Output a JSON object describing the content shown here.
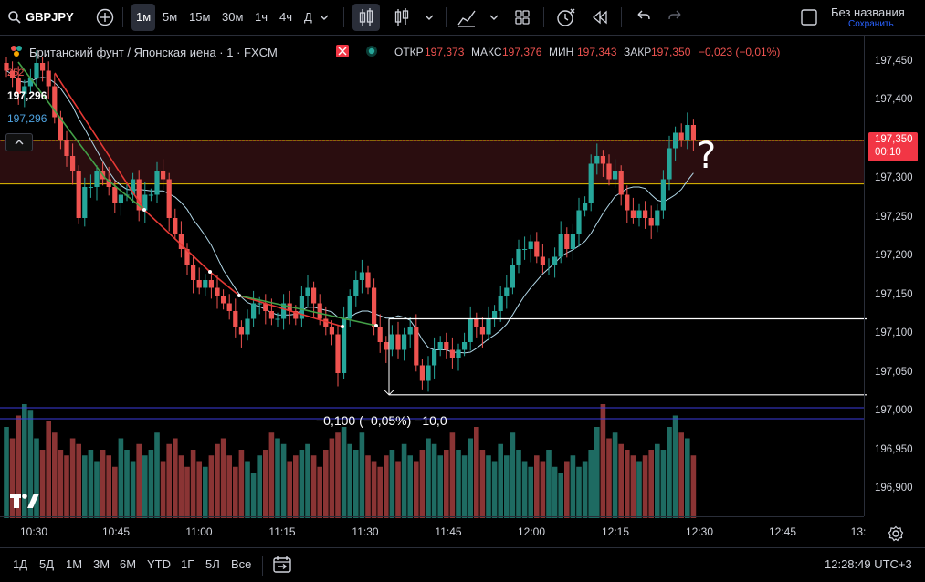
{
  "toolbar": {
    "symbol": "GBPJPY",
    "intervals": [
      "1м",
      "5м",
      "15м",
      "30м",
      "1ч",
      "4ч",
      "Д"
    ],
    "active_interval": "1м",
    "layout_name": "Без названия",
    "save_label": "Сохранить"
  },
  "legend": {
    "instrument": "Британский фунт / Японская иена · 1 · FXCM",
    "open_label": "ОТКР",
    "open": "197,373",
    "high_label": "МАКС",
    "high": "197,376",
    "low_label": "МИН",
    "low": "197,343",
    "close_label": "ЗАКР",
    "close": "197,350",
    "change": "−0,023 (−0,01%)",
    "indicator_value_1": "197,296",
    "indicator_value_2": "197,296",
    "indicator_partial": "252"
  },
  "price_badge": {
    "price": "197,350",
    "countdown": "00:10"
  },
  "measure_label": "−0,100 (−0,05%) −10,0",
  "annotation": "?",
  "bottom": {
    "ranges": [
      "1Д",
      "5Д",
      "1М",
      "3М",
      "6М",
      "YTD",
      "1Г",
      "5Л",
      "Все"
    ],
    "clock": "12:28:49 UTC+3"
  },
  "colors": {
    "up": "#26a69a",
    "down": "#ef5350",
    "vol_up": "#1e6b62",
    "vol_down": "#8a3434",
    "level": "#e5c100",
    "ma": "#b2d8e8",
    "zone": "#2a0d0f"
  },
  "chart_data": {
    "type": "candlestick",
    "symbol": "GBPJPY",
    "interval": "1 min",
    "y_ticks": [
      "197,450",
      "197,400",
      "197,350",
      "197,300",
      "197,250",
      "197,200",
      "197,150",
      "197,100",
      "197,050",
      "197,000",
      "196,950",
      "196,900"
    ],
    "ylim": [
      196.865,
      197.465
    ],
    "x_ticks": [
      "10:30",
      "10:45",
      "11:00",
      "11:15",
      "11:30",
      "11:45",
      "12:00",
      "12:15",
      "12:30",
      "12:45",
      "13:"
    ],
    "horizontal_levels": [
      197.35,
      197.294
    ],
    "box_levels": [
      197.12,
      197.022
    ],
    "closes": [
      197.44,
      197.43,
      197.41,
      197.42,
      197.43,
      197.45,
      197.44,
      197.42,
      197.38,
      197.35,
      197.33,
      197.31,
      197.25,
      197.29,
      197.29,
      197.31,
      197.3,
      197.29,
      197.27,
      197.28,
      197.28,
      197.3,
      197.26,
      197.28,
      197.28,
      197.31,
      197.3,
      197.25,
      197.23,
      197.21,
      197.19,
      197.17,
      197.16,
      197.17,
      197.16,
      197.15,
      197.14,
      197.13,
      197.11,
      197.1,
      197.12,
      197.14,
      197.14,
      197.13,
      197.12,
      197.12,
      197.14,
      197.13,
      197.12,
      197.15,
      197.16,
      197.14,
      197.12,
      197.11,
      197.1,
      197.05,
      197.12,
      197.15,
      197.17,
      197.18,
      197.16,
      197.11,
      197.09,
      197.08,
      197.1,
      197.08,
      197.1,
      197.11,
      197.06,
      197.04,
      197.06,
      197.08,
      197.09,
      197.08,
      197.07,
      197.08,
      197.09,
      197.12,
      197.11,
      197.1,
      197.12,
      197.13,
      197.15,
      197.16,
      197.19,
      197.21,
      197.21,
      197.22,
      197.2,
      197.19,
      197.19,
      197.2,
      197.23,
      197.21,
      197.23,
      197.26,
      197.27,
      197.32,
      197.33,
      197.32,
      197.3,
      197.31,
      197.28,
      197.26,
      197.25,
      197.26,
      197.25,
      197.24,
      197.26,
      197.3,
      197.34,
      197.36,
      197.35,
      197.37,
      197.35
    ],
    "volumes": [
      0.8,
      0.7,
      0.9,
      1.0,
      0.95,
      0.7,
      0.6,
      0.85,
      0.75,
      0.6,
      0.55,
      0.7,
      0.65,
      0.55,
      0.6,
      0.5,
      0.6,
      0.55,
      0.45,
      0.7,
      0.6,
      0.5,
      0.65,
      0.55,
      0.6,
      0.75,
      0.5,
      0.65,
      0.7,
      0.55,
      0.45,
      0.6,
      0.5,
      0.45,
      0.55,
      0.65,
      0.7,
      0.55,
      0.45,
      0.6,
      0.5,
      0.4,
      0.55,
      0.6,
      0.75,
      0.7,
      0.65,
      0.5,
      0.55,
      0.6,
      0.65,
      0.55,
      0.45,
      0.6,
      0.7,
      0.75,
      0.8,
      0.65,
      0.6,
      0.75,
      0.55,
      0.5,
      0.45,
      0.55,
      0.6,
      0.5,
      0.65,
      0.55,
      0.5,
      0.6,
      0.7,
      0.65,
      0.55,
      0.6,
      0.75,
      0.6,
      0.55,
      0.7,
      0.8,
      0.6,
      0.55,
      0.5,
      0.65,
      0.55,
      0.75,
      0.6,
      0.5,
      0.45,
      0.55,
      0.5,
      0.6,
      0.45,
      0.4,
      0.5,
      0.55,
      0.45,
      0.5,
      0.6,
      0.8,
      1.0,
      0.7,
      0.75,
      0.65,
      0.6,
      0.55,
      0.5,
      0.55,
      0.6,
      0.65,
      0.6,
      0.8,
      0.9,
      0.75,
      0.7,
      0.55
    ]
  }
}
